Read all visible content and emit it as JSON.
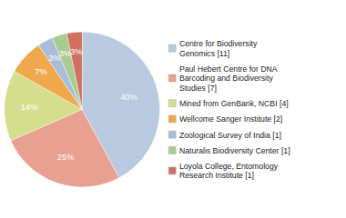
{
  "chart_data": {
    "type": "pie",
    "categories": [
      "Centre for Biodiversity\nGenomics [11]",
      "Paul Hebert Centre for DNA\nBarcoding and Biodiversity\nStudies [7]",
      "Mined from GenBank, NCBI [4]",
      "Wellcome Sanger Institute [2]",
      "Zoological Survey of India [1]",
      "Naturalis Biodiversity Center [1]",
      "Loyola College, Entomology\nResearch Institute [1]"
    ],
    "values": [
      40,
      25,
      14,
      7,
      3,
      3,
      3
    ],
    "value_labels": [
      "40%",
      "25%",
      "14%",
      "7%",
      "3%",
      "3%",
      "3%"
    ],
    "colors": [
      "#b8c9e0",
      "#e8a090",
      "#d4de8c",
      "#f0a84c",
      "#a8bcd8",
      "#a8cc90",
      "#d07060"
    ],
    "data_labels": true,
    "legend": "right"
  }
}
